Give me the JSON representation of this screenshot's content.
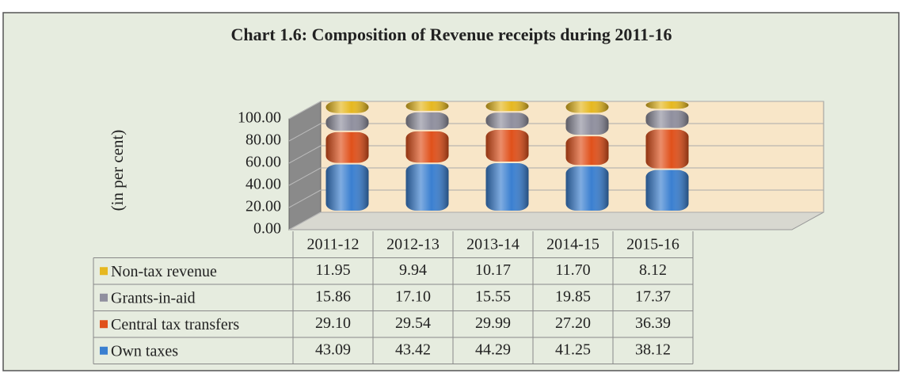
{
  "chart_data": {
    "type": "bar3d_stacked_table",
    "title": "Chart 1.6: Composition of Revenue receipts during 2011-16",
    "y_label": "(in per cent)",
    "categories": [
      "2011-12",
      "2012-13",
      "2013-14",
      "2014-15",
      "2015-16"
    ],
    "series": [
      {
        "name": "Own taxes",
        "color": "#3a7fd0",
        "values": [
          43.09,
          43.42,
          44.29,
          41.25,
          38.12
        ],
        "value_labels": [
          "43.09",
          "43.42",
          "44.29",
          "41.25",
          "38.12"
        ]
      },
      {
        "name": "Central tax transfers",
        "color": "#e0501a",
        "values": [
          29.1,
          29.54,
          29.99,
          27.2,
          36.39
        ],
        "value_labels": [
          "29.10",
          "29.54",
          "29.99",
          "27.20",
          "36.39"
        ]
      },
      {
        "name": "Grants-in-aid",
        "color": "#8f8f9e",
        "values": [
          15.86,
          17.1,
          15.55,
          19.85,
          17.37
        ],
        "value_labels": [
          "15.86",
          "17.10",
          "15.55",
          "19.85",
          "17.37"
        ]
      },
      {
        "name": "Non-tax revenue",
        "color": "#e6b820",
        "values": [
          11.95,
          9.94,
          10.17,
          11.7,
          8.12
        ],
        "value_labels": [
          "11.95",
          "9.94",
          "10.17",
          "11.70",
          "8.12"
        ]
      }
    ],
    "ylim": [
      0,
      100
    ],
    "yticks": [
      {
        "value": 0,
        "label": "0.00"
      },
      {
        "value": 20,
        "label": "20.00"
      },
      {
        "value": 40,
        "label": "40.00"
      },
      {
        "value": 60,
        "label": "60.00"
      },
      {
        "value": 80,
        "label": "80.00"
      },
      {
        "value": 100,
        "label": "100.00"
      }
    ],
    "grid": true
  }
}
